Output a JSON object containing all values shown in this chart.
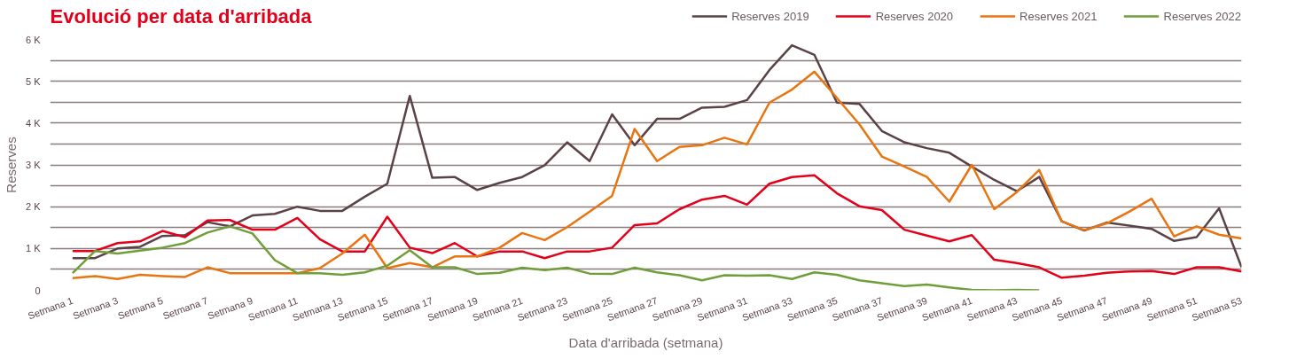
{
  "chart_data": {
    "type": "line",
    "title": "Evolució per data d'arribada",
    "xlabel": "Data d'arribada (setmana)",
    "ylabel": "Reserves",
    "categories": [
      "Setmana 1",
      null,
      "Setmana 3",
      null,
      "Setmana 5",
      null,
      "Setmana 7",
      null,
      "Setmana 9",
      null,
      "Setmana 11",
      null,
      "Setmana 13",
      null,
      "Setmana 15",
      null,
      "Setmana 17",
      null,
      "Setmana 19",
      null,
      "Setmana 21",
      null,
      "Setmana 23",
      null,
      "Setmana 25",
      null,
      "Setmana 27",
      null,
      "Setmana 29",
      null,
      "Setmana 31",
      null,
      "Setmana 33",
      null,
      "Setmana 35",
      null,
      "Setmana 37",
      null,
      "Setmana 39",
      null,
      "Setmana 41",
      null,
      "Setmana 43",
      null,
      "Setmana 45",
      null,
      "Setmana 47",
      null,
      "Setmana 49",
      null,
      "Setmana 51",
      null,
      "Setmana 53"
    ],
    "series": [
      {
        "name": "Reserves 2019",
        "color": "#5a4346",
        "values": [
          770,
          770,
          1000,
          1040,
          1300,
          1320,
          1630,
          1530,
          1790,
          1830,
          2000,
          1900,
          1900,
          2240,
          2550,
          4650,
          2690,
          2710,
          2400,
          2570,
          2710,
          2990,
          3540,
          3090,
          4210,
          3470,
          4100,
          4100,
          4370,
          4390,
          4550,
          5270,
          5860,
          5630,
          4490,
          4460,
          3810,
          3540,
          3400,
          3290,
          2960,
          2640,
          2370,
          2710,
          1650,
          1430,
          1620,
          1550,
          1470,
          1180,
          1270,
          1960,
          550
        ]
      },
      {
        "name": "Reserves 2020",
        "color": "#e2001a",
        "values": [
          940,
          940,
          1130,
          1170,
          1420,
          1270,
          1670,
          1680,
          1450,
          1450,
          1730,
          1220,
          930,
          930,
          1760,
          1020,
          890,
          1130,
          810,
          930,
          930,
          770,
          930,
          930,
          1020,
          1560,
          1600,
          1940,
          2170,
          2260,
          2050,
          2550,
          2710,
          2750,
          2320,
          2010,
          1920,
          1450,
          1310,
          1170,
          1320,
          730,
          650,
          550,
          300,
          350,
          420,
          450,
          460,
          390,
          550,
          550,
          450
        ]
      },
      {
        "name": "Reserves 2021",
        "color": "#e87511",
        "values": [
          290,
          340,
          270,
          370,
          340,
          320,
          550,
          410,
          410,
          410,
          410,
          530,
          880,
          1330,
          530,
          650,
          550,
          810,
          810,
          1020,
          1370,
          1200,
          1510,
          1880,
          2260,
          3860,
          3090,
          3430,
          3470,
          3650,
          3490,
          4490,
          4800,
          5230,
          4600,
          3970,
          3200,
          2960,
          2710,
          2120,
          3000,
          1940,
          2350,
          2880,
          1650,
          1440,
          1600,
          1880,
          2190,
          1290,
          1530,
          1330,
          1240
        ]
      },
      {
        "name": "Reserves 2022",
        "color": "#6f9e3a",
        "values": [
          410,
          940,
          880,
          950,
          1020,
          1130,
          1380,
          1530,
          1360,
          720,
          410,
          410,
          370,
          430,
          590,
          960,
          550,
          550,
          390,
          420,
          540,
          480,
          540,
          400,
          390,
          540,
          430,
          360,
          240,
          360,
          350,
          360,
          270,
          430,
          370,
          240,
          170,
          100,
          140,
          70,
          10,
          0,
          10,
          0,
          null,
          null,
          null,
          null,
          null,
          null,
          null,
          null,
          null
        ]
      }
    ],
    "ylim": [
      0,
      6000
    ],
    "yticks": [
      0,
      {
        "value": 500,
        "label": null
      },
      {
        "value": 1000,
        "label": "1 K"
      },
      {
        "value": 1500,
        "label": null
      },
      {
        "value": 2000,
        "label": "2 K"
      },
      {
        "value": 2500,
        "label": null
      },
      {
        "value": 3000,
        "label": "3 K"
      },
      {
        "value": 3500,
        "label": null
      },
      {
        "value": 4000,
        "label": "4 K"
      },
      {
        "value": 4500,
        "label": null
      },
      {
        "value": 5000,
        "label": "5 K"
      },
      {
        "value": 5500,
        "label": null
      },
      {
        "value": 6000,
        "label": "6 K"
      }
    ],
    "grid": "y",
    "legend": "top right",
    "line_style": "solid"
  }
}
